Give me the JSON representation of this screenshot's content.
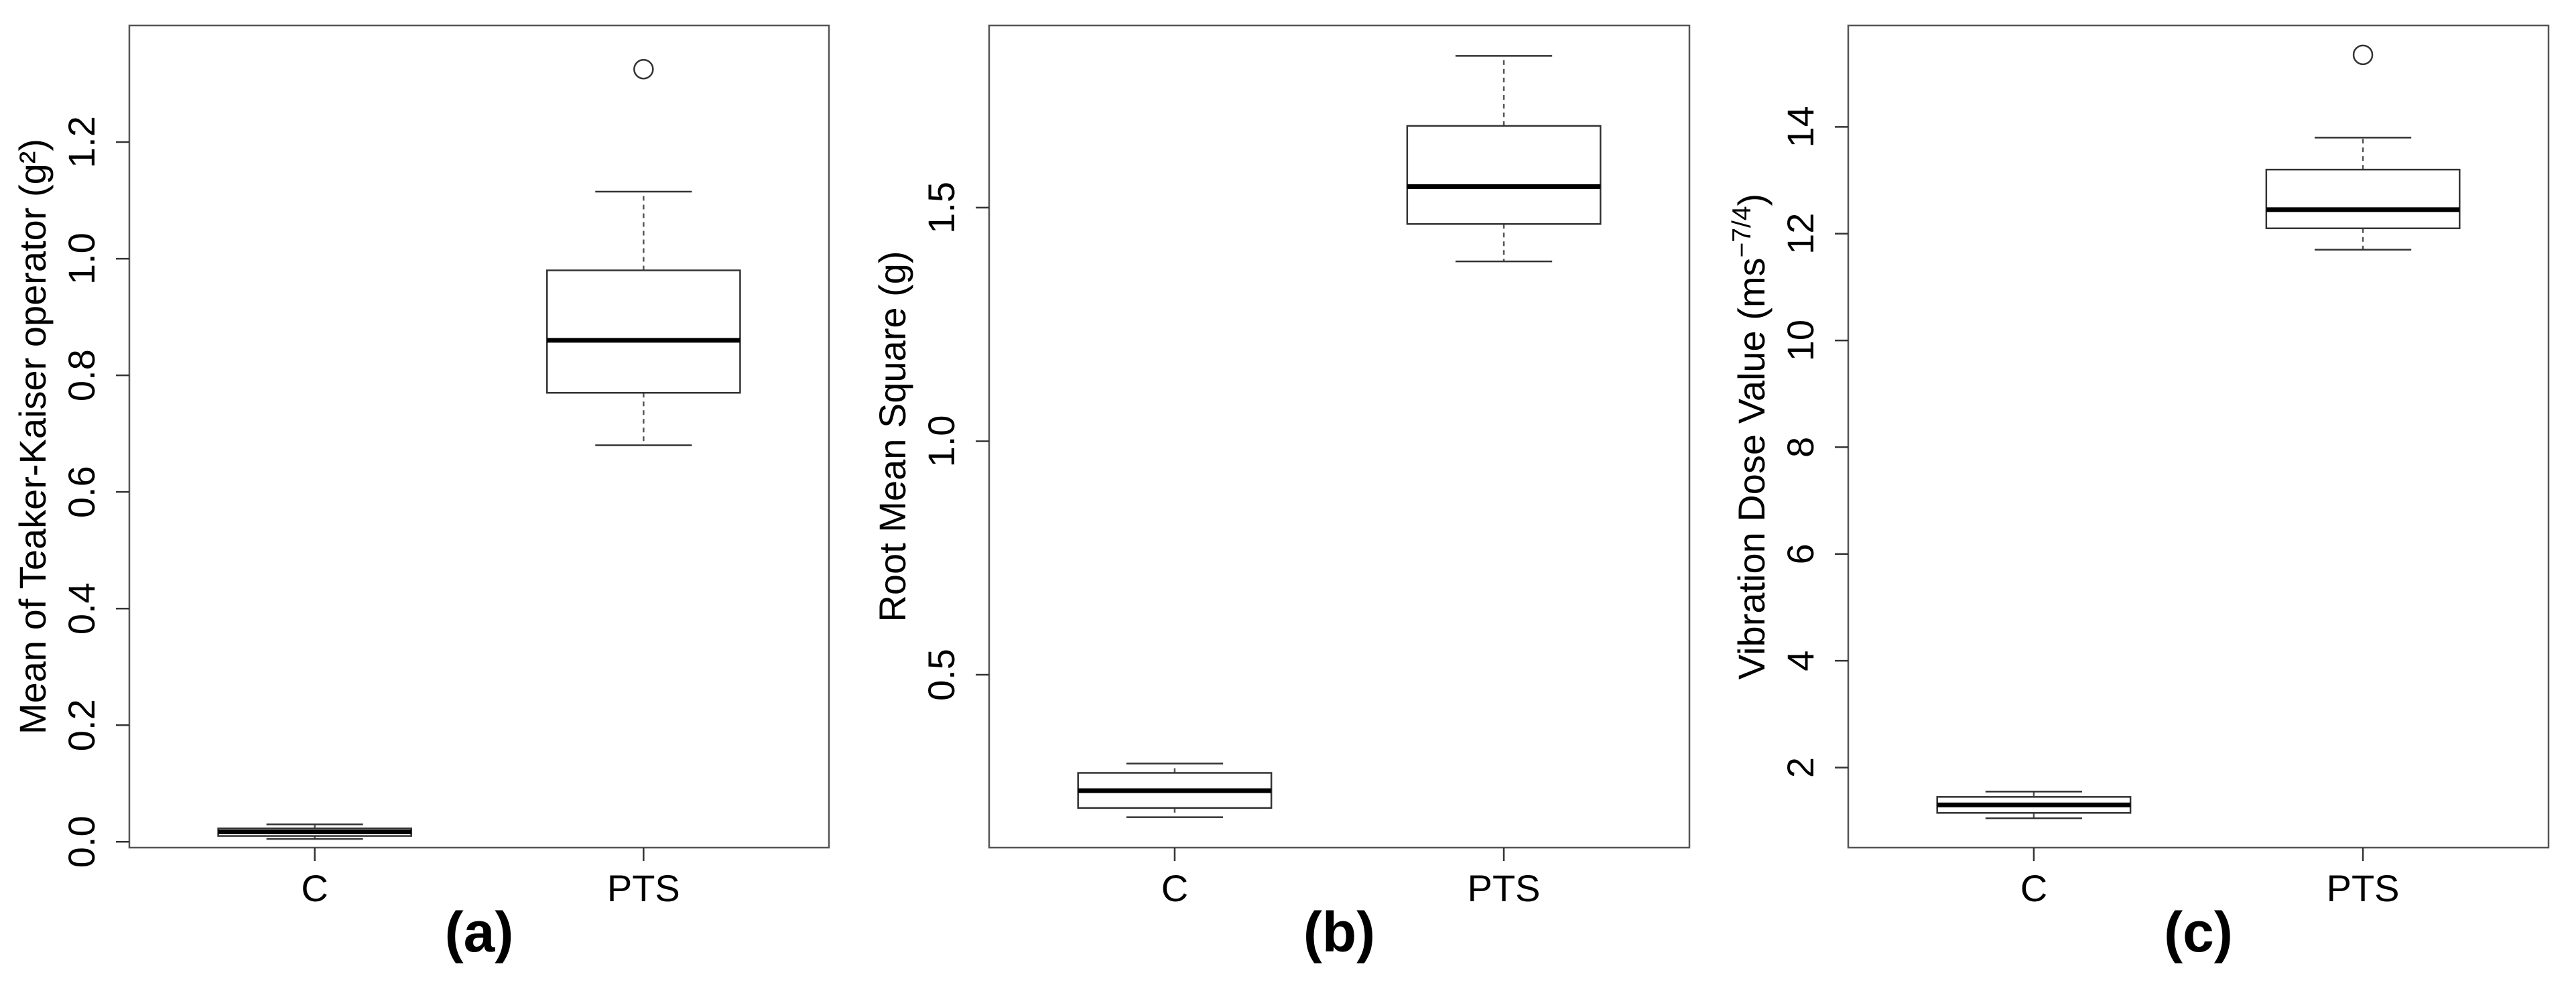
{
  "chart_data": [
    {
      "type": "box",
      "panel_label": "(a)",
      "ylabel": "Mean of Teaker-Kaiser operator (g²)",
      "categories": [
        "C",
        "PTS"
      ],
      "ylim": [
        -0.01,
        1.4
      ],
      "yticks": [
        0.0,
        0.2,
        0.4,
        0.6,
        0.8,
        1.0,
        1.2
      ],
      "ytick_labels": [
        "0.0",
        "0.2",
        "0.4",
        "0.6",
        "0.8",
        "1.0",
        "1.2"
      ],
      "boxes": [
        {
          "category": "C",
          "whisker_low": 0.005,
          "q1": 0.01,
          "median": 0.017,
          "q3": 0.023,
          "whisker_high": 0.03,
          "outliers": []
        },
        {
          "category": "PTS",
          "whisker_low": 0.68,
          "q1": 0.77,
          "median": 0.86,
          "q3": 0.98,
          "whisker_high": 1.115,
          "outliers": [
            1.325
          ]
        }
      ]
    },
    {
      "type": "box",
      "panel_label": "(b)",
      "ylabel": "Root Mean Square (g)",
      "categories": [
        "C",
        "PTS"
      ],
      "ylim": [
        0.13,
        1.89
      ],
      "yticks": [
        0.5,
        1.0,
        1.5
      ],
      "ytick_labels": [
        "0.5",
        "1.0",
        "1.5"
      ],
      "boxes": [
        {
          "category": "C",
          "whisker_low": 0.195,
          "q1": 0.215,
          "median": 0.252,
          "q3": 0.29,
          "whisker_high": 0.31,
          "outliers": []
        },
        {
          "category": "PTS",
          "whisker_low": 1.385,
          "q1": 1.465,
          "median": 1.545,
          "q3": 1.675,
          "whisker_high": 1.825,
          "outliers": []
        }
      ]
    },
    {
      "type": "box",
      "panel_label": "(c)",
      "ylabel": "Vibration Dose Value (ms",
      "ylabel_sup": "−7/4",
      "ylabel_close": ")",
      "categories": [
        "C",
        "PTS"
      ],
      "ylim": [
        0.5,
        15.9
      ],
      "yticks": [
        2,
        4,
        6,
        8,
        10,
        12,
        14
      ],
      "ytick_labels": [
        "2",
        "4",
        "6",
        "8",
        "10",
        "12",
        "14"
      ],
      "boxes": [
        {
          "category": "C",
          "whisker_low": 1.05,
          "q1": 1.15,
          "median": 1.3,
          "q3": 1.45,
          "whisker_high": 1.55,
          "outliers": []
        },
        {
          "category": "PTS",
          "whisker_low": 11.7,
          "q1": 12.1,
          "median": 12.45,
          "q3": 13.2,
          "whisker_high": 13.8,
          "outliers": [
            15.35
          ]
        }
      ]
    }
  ]
}
